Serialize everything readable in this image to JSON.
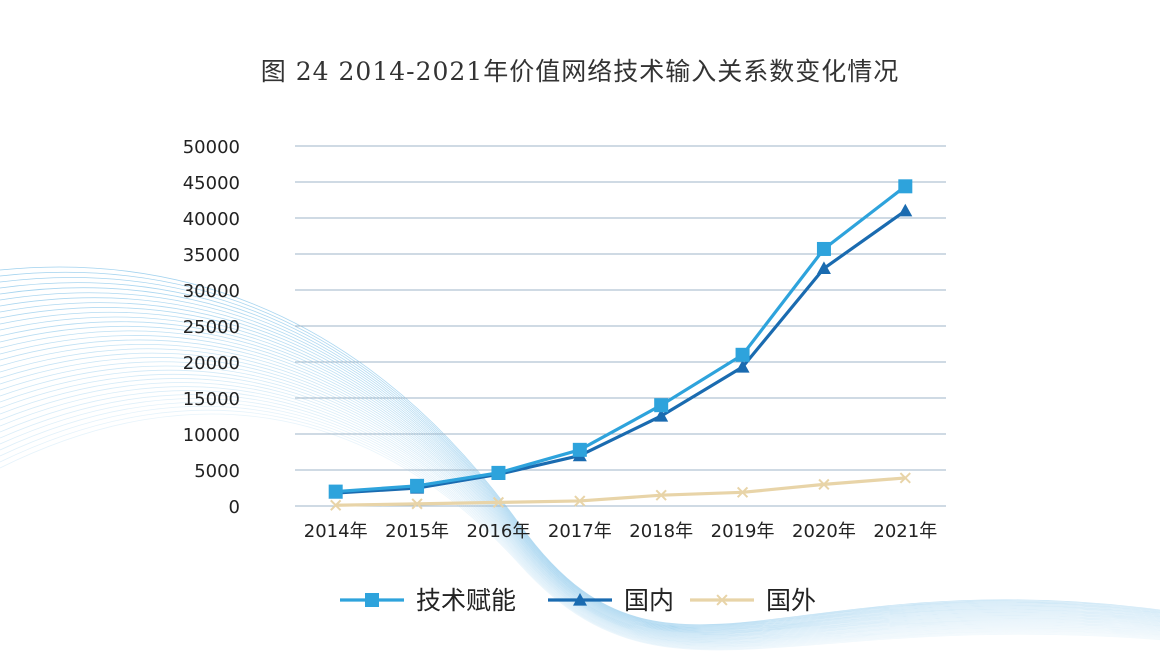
{
  "chart_data": {
    "type": "line",
    "title": "图 24  2014-2021年价值网络技术输入关系数变化情况",
    "xlabel": "",
    "ylabel": "",
    "categories": [
      "2014年",
      "2015年",
      "2016年",
      "2017年",
      "2018年",
      "2019年",
      "2020年",
      "2021年"
    ],
    "ylim": [
      0,
      50000
    ],
    "yticks": [
      "0",
      "5000",
      "10000",
      "15000",
      "20000",
      "25000",
      "30000",
      "35000",
      "40000",
      "45000",
      "50000"
    ],
    "grid": true,
    "legend_position": "bottom",
    "series": [
      {
        "name": "技术赋能",
        "marker": "square",
        "color": "#2ea3dc",
        "values": [
          2000,
          2800,
          4600,
          7800,
          14000,
          21000,
          35700,
          44400
        ]
      },
      {
        "name": "国内",
        "marker": "triangle",
        "color": "#1a6bb0",
        "values": [
          1800,
          2500,
          4400,
          7000,
          12500,
          19300,
          33000,
          41000
        ]
      },
      {
        "name": "国外",
        "marker": "x",
        "color": "#e8d4a8",
        "values": [
          100,
          300,
          500,
          700,
          1500,
          1900,
          3000,
          3900
        ]
      }
    ]
  }
}
